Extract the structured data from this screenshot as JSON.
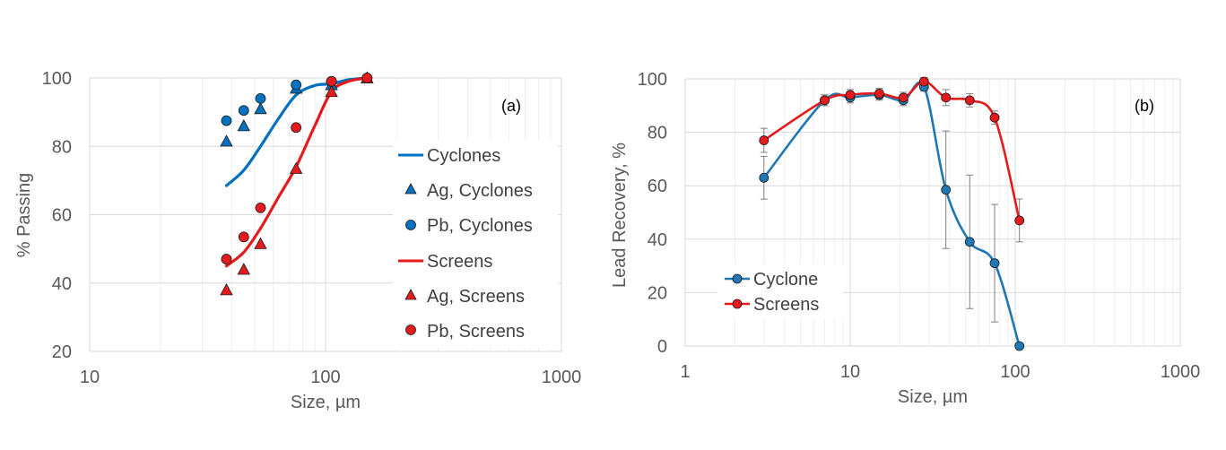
{
  "chart_data": [
    {
      "type": "scatter",
      "panel_label": "(a)",
      "xlabel": "Size, µm",
      "ylabel": "% Passing",
      "x_scale": "log",
      "xlim": [
        10,
        1000
      ],
      "ylim": [
        20,
        100
      ],
      "x_ticks": [
        10,
        100,
        1000
      ],
      "y_ticks": [
        20,
        40,
        60,
        80,
        100
      ],
      "grid": true,
      "legend_position": "right",
      "series": [
        {
          "name": "Cyclones",
          "kind": "line",
          "color": "#0070C0",
          "x": [
            38,
            45,
            53,
            63,
            75,
            90,
            106,
            125,
            150
          ],
          "y": [
            68.5,
            73,
            80,
            88,
            95,
            97.8,
            98.3,
            99.5,
            100
          ]
        },
        {
          "name": "Ag, Cyclones",
          "kind": "marker",
          "marker": "triangle",
          "color": "#0070C0",
          "x": [
            38,
            45,
            53,
            75,
            106,
            150
          ],
          "y": [
            81.5,
            86,
            91,
            97,
            98,
            100
          ]
        },
        {
          "name": "Pb, Cyclones",
          "kind": "marker",
          "marker": "circle",
          "color": "#0070C0",
          "x": [
            38,
            45,
            53,
            75,
            106,
            150
          ],
          "y": [
            87.5,
            90.5,
            94,
            98,
            99,
            100
          ]
        },
        {
          "name": "Screens",
          "kind": "line",
          "color": "#E41A1C",
          "x": [
            38,
            45,
            53,
            63,
            75,
            90,
            106,
            125,
            150
          ],
          "y": [
            45,
            49,
            56,
            65,
            74,
            86,
            96,
            99,
            100
          ]
        },
        {
          "name": "Ag, Screens",
          "kind": "marker",
          "marker": "triangle",
          "color": "#E41A1C",
          "x": [
            38,
            45,
            53,
            75,
            106,
            150
          ],
          "y": [
            38,
            44,
            51.5,
            73.5,
            96,
            100
          ]
        },
        {
          "name": "Pb, Screens",
          "kind": "marker",
          "marker": "circle",
          "color": "#E41A1C",
          "x": [
            38,
            45,
            53,
            75,
            106,
            150
          ],
          "y": [
            47,
            53.5,
            62,
            85.5,
            99,
            100
          ]
        }
      ]
    },
    {
      "type": "line",
      "panel_label": "(b)",
      "xlabel": "Size, µm",
      "ylabel": "Lead Recovery, %",
      "x_scale": "log",
      "xlim": [
        1,
        1000
      ],
      "ylim": [
        0,
        100
      ],
      "x_ticks": [
        1,
        10,
        100,
        1000
      ],
      "y_ticks": [
        0,
        20,
        40,
        60,
        80,
        100
      ],
      "grid": true,
      "legend_position": "bottom-left",
      "series": [
        {
          "name": "Cyclone",
          "color": "#1F77B4",
          "x": [
            3,
            7,
            10,
            15,
            21,
            28,
            38,
            53,
            75,
            106
          ],
          "y": [
            63,
            92,
            93,
            94,
            92,
            97,
            58.5,
            39,
            31,
            0
          ],
          "err": [
            8,
            2,
            2,
            2,
            2,
            1.5,
            22,
            25,
            22,
            0
          ]
        },
        {
          "name": "Screens",
          "color": "#E41A1C",
          "x": [
            3,
            7,
            10,
            15,
            21,
            28,
            38,
            53,
            75,
            106
          ],
          "y": [
            77,
            92,
            94,
            94.5,
            93,
            99,
            93,
            92,
            85.5,
            47
          ],
          "err": [
            4.5,
            2,
            2,
            2,
            2,
            1.5,
            3,
            2.5,
            2.5,
            8
          ]
        }
      ]
    }
  ]
}
